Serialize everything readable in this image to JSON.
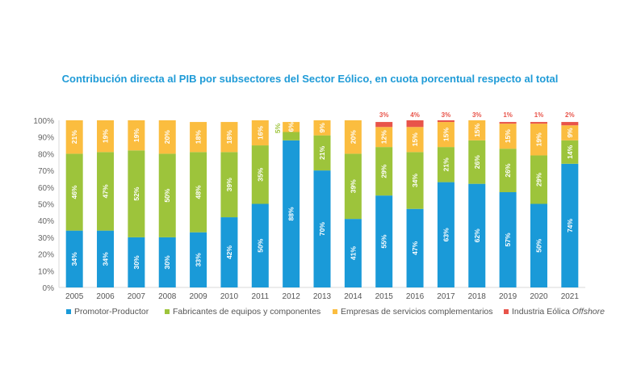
{
  "chart_data": {
    "type": "bar",
    "stacked": true,
    "title": "Contribución directa al PIB por subsectores del Sector Eólico, en cuota porcentual respecto al total",
    "xlabel": "",
    "ylabel": "",
    "ylim": [
      0,
      100
    ],
    "yticks": [
      "0%",
      "10%",
      "20%",
      "30%",
      "40%",
      "50%",
      "60%",
      "70%",
      "80%",
      "90%",
      "100%"
    ],
    "categories": [
      "2005",
      "2006",
      "2007",
      "2008",
      "2009",
      "2010",
      "2011",
      "2012",
      "2013",
      "2014",
      "2015",
      "2016",
      "2017",
      "2018",
      "2019",
      "2020",
      "2021"
    ],
    "series": [
      {
        "name": "Promotor-Productor",
        "color": "#1a9ad8",
        "values": [
          34,
          34,
          30,
          30,
          33,
          42,
          50,
          88,
          70,
          41,
          55,
          47,
          63,
          62,
          57,
          50,
          74
        ]
      },
      {
        "name": "Fabricantes de equipos y componentes",
        "color": "#9dc43b",
        "values": [
          46,
          47,
          52,
          50,
          48,
          39,
          35,
          5,
          21,
          39,
          29,
          34,
          21,
          26,
          26,
          29,
          14
        ]
      },
      {
        "name": "Empresas de servicios complementarios",
        "color": "#fbbd3f",
        "values": [
          21,
          19,
          19,
          20,
          18,
          18,
          16,
          6,
          9,
          20,
          12,
          15,
          15,
          15,
          15,
          19,
          9
        ]
      },
      {
        "name": "Industria Eólica Offshore",
        "color": "#e8544a",
        "values": [
          0,
          0,
          0,
          0,
          0,
          0,
          0,
          0,
          0,
          0,
          3,
          4,
          3,
          3,
          1,
          1,
          2
        ]
      }
    ],
    "legend": {
      "position": "bottom",
      "items": [
        {
          "label": "Promotor-Productor",
          "italic": ""
        },
        {
          "label": "Fabricantes de equipos y componentes",
          "italic": ""
        },
        {
          "label": "Empresas de servicios complementarios",
          "italic": ""
        },
        {
          "label": "Industria Eólica ",
          "italic": "Offshore"
        }
      ]
    },
    "grid": false
  }
}
